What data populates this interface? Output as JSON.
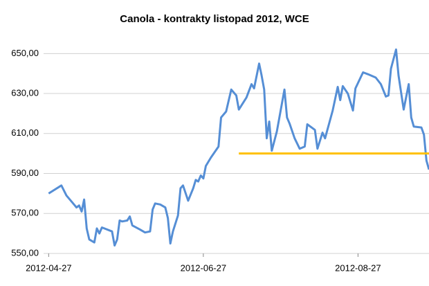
{
  "chart_data": {
    "type": "line",
    "title": "Canola - kontrakty listopad 2012, WCE",
    "x": [
      "2012-04-27",
      "2012-05-02",
      "2012-05-04",
      "2012-05-07",
      "2012-05-08",
      "2012-05-09",
      "2012-05-10",
      "2012-05-11",
      "2012-05-12",
      "2012-05-13",
      "2012-05-15",
      "2012-05-16",
      "2012-05-17",
      "2012-05-18",
      "2012-05-19",
      "2012-05-22",
      "2012-05-23",
      "2012-05-24",
      "2012-05-25",
      "2012-05-26",
      "2012-05-28",
      "2012-05-29",
      "2012-05-30",
      "2012-06-02",
      "2012-06-04",
      "2012-06-06",
      "2012-06-07",
      "2012-06-08",
      "2012-06-10",
      "2012-06-12",
      "2012-06-13",
      "2012-06-14",
      "2012-06-15",
      "2012-06-17",
      "2012-06-18",
      "2012-06-19",
      "2012-06-21",
      "2012-06-23",
      "2012-06-24",
      "2012-06-25",
      "2012-06-26",
      "2012-06-27",
      "2012-06-28",
      "2012-06-30",
      "2012-07-03",
      "2012-07-04",
      "2012-07-06",
      "2012-07-08",
      "2012-07-10",
      "2012-07-11",
      "2012-07-14",
      "2012-07-16",
      "2012-07-17",
      "2012-07-19",
      "2012-07-20",
      "2012-07-21",
      "2012-07-22",
      "2012-07-23",
      "2012-07-24",
      "2012-07-26",
      "2012-07-29",
      "2012-07-30",
      "2012-07-31",
      "2012-08-02",
      "2012-08-04",
      "2012-08-06",
      "2012-08-07",
      "2012-08-10",
      "2012-08-11",
      "2012-08-13",
      "2012-08-14",
      "2012-08-17",
      "2012-08-19",
      "2012-08-20",
      "2012-08-21",
      "2012-08-23",
      "2012-08-25",
      "2012-08-26",
      "2012-08-28",
      "2012-08-29",
      "2012-08-31",
      "2012-09-03",
      "2012-09-05",
      "2012-09-07",
      "2012-09-08",
      "2012-09-09",
      "2012-09-11",
      "2012-09-12",
      "2012-09-14",
      "2012-09-16",
      "2012-09-17",
      "2012-09-18",
      "2012-09-21",
      "2012-09-22",
      "2012-09-23",
      "2012-09-24"
    ],
    "series": [
      {
        "color": "#558ed5",
        "values": [
          580,
          584,
          579,
          574.5,
          573,
          574,
          571,
          577,
          562.5,
          557,
          555.5,
          562.5,
          560,
          563,
          562.5,
          561,
          554,
          557,
          566.5,
          566,
          566.5,
          568.5,
          564,
          562,
          560.5,
          561,
          572,
          575,
          574.5,
          573,
          567.7,
          555,
          561,
          569,
          582.6,
          584,
          576.4,
          582.6,
          586.8,
          586,
          589,
          587.5,
          593.8,
          598,
          603.5,
          618,
          621,
          632,
          629,
          622,
          628,
          634.7,
          632.6,
          645,
          639,
          632,
          607.6,
          616,
          601.4,
          611,
          632,
          618,
          615,
          607.6,
          602.4,
          603.5,
          614.6,
          611.8,
          602.4,
          610.4,
          607.6,
          621.5,
          633.3,
          626.7,
          633.7,
          630,
          621.5,
          632.6,
          638,
          640.6,
          639.6,
          638,
          634.7,
          628.5,
          629,
          642.4,
          652,
          639,
          622,
          634.7,
          618,
          613.5,
          613,
          609.4,
          596.5,
          592
        ]
      }
    ],
    "reference_line": {
      "value": 600,
      "x": [
        "2012-07-11",
        "2012-09-24"
      ],
      "color": "#ffc000"
    },
    "xlim": [
      "2012-04-25",
      "2012-09-24"
    ],
    "xticks": [
      "2012-04-27",
      "2012-06-27",
      "2012-08-27"
    ],
    "ylim": [
      550,
      656
    ],
    "yticks": [
      {
        "value": 550,
        "label": "550,00"
      },
      {
        "value": 570,
        "label": "570,00"
      },
      {
        "value": 590,
        "label": "590,00"
      },
      {
        "value": 610,
        "label": "610,00"
      },
      {
        "value": 630,
        "label": "630,00"
      },
      {
        "value": 650,
        "label": "650,00"
      }
    ],
    "grid": true
  }
}
